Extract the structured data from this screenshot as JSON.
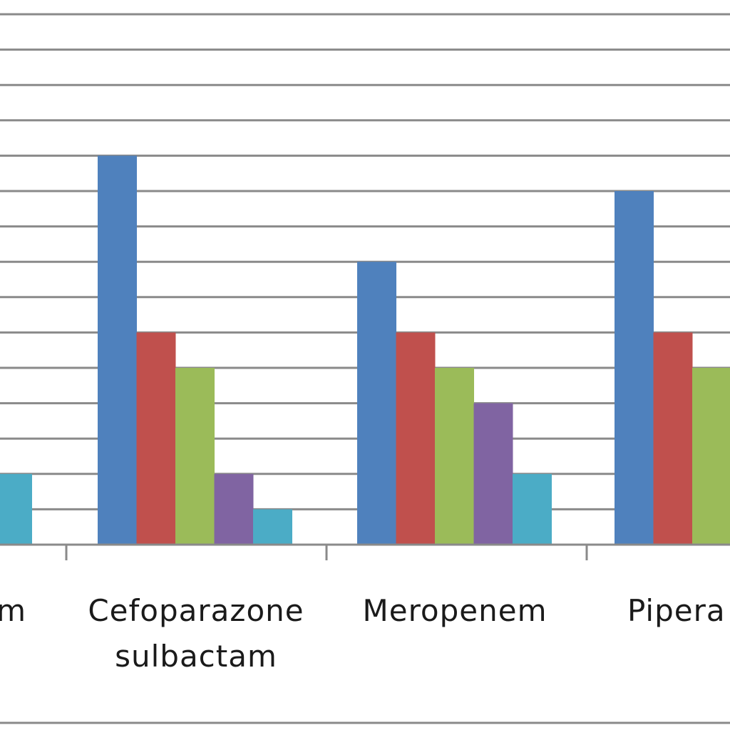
{
  "chart_data": {
    "type": "bar",
    "categories": [
      [
        "m"
      ],
      [
        "Cefoparazone",
        "sulbactam"
      ],
      [
        "Meropenem"
      ],
      [
        "Pipera"
      ]
    ],
    "series": [
      {
        "values": [
          null,
          11,
          8,
          10
        ],
        "color": "#4F81BD"
      },
      {
        "values": [
          null,
          6,
          6,
          6
        ],
        "color": "#C0504D"
      },
      {
        "values": [
          null,
          5,
          5,
          5
        ],
        "color": "#9BBB59"
      },
      {
        "values": [
          null,
          2,
          4,
          null
        ],
        "color": "#8064A2"
      },
      {
        "values": [
          2,
          1,
          2,
          null
        ],
        "color": "#4BACC6"
      }
    ],
    "ylim": [
      0,
      15
    ],
    "grid": true,
    "legend": "none"
  }
}
